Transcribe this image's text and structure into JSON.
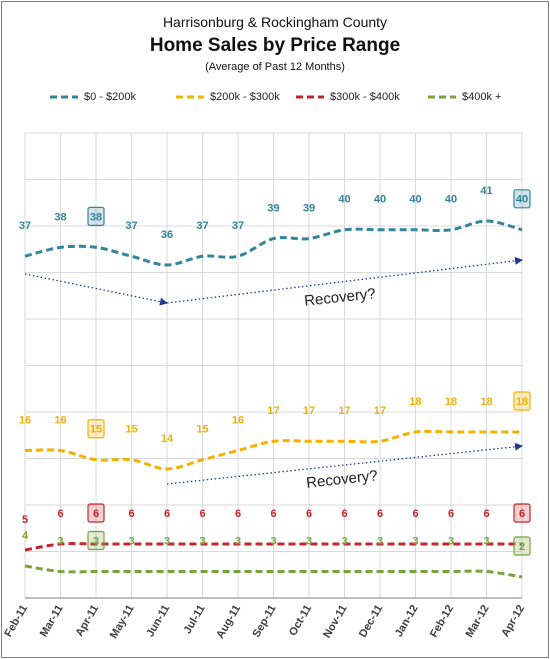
{
  "title_line1": "Harrisonburg & Rockingham County",
  "title": "Home Sales by Price Range",
  "subtitle": "(Average of Past 12 Months)",
  "chart_data": {
    "type": "line",
    "categories": [
      "Feb-11",
      "Mar-11",
      "Apr-11",
      "May-11",
      "Jun-11",
      "Jul-11",
      "Aug-11",
      "Sep-11",
      "Oct-11",
      "Nov-11",
      "Dec-11",
      "Jan-12",
      "Feb-12",
      "Mar-12",
      "Apr-12"
    ],
    "series": [
      {
        "name": "$0 - $200k",
        "color": "#31859c",
        "values": [
          37,
          38,
          38,
          37,
          36,
          37,
          37,
          39,
          39,
          40,
          40,
          40,
          40,
          41,
          40
        ],
        "highlight": [
          2,
          14
        ]
      },
      {
        "name": "$200k - $300k",
        "color": "#f5b000",
        "values": [
          16,
          16,
          15,
          15,
          14,
          15,
          16,
          17,
          17,
          17,
          17,
          18,
          18,
          18,
          18
        ],
        "highlight": [
          2,
          14
        ]
      },
      {
        "name": "$300k - $400k",
        "color": "#c0282d",
        "values": [
          5,
          6,
          6,
          6,
          6,
          6,
          6,
          6,
          6,
          6,
          6,
          6,
          6,
          6,
          6
        ],
        "highlight": [
          2,
          14
        ]
      },
      {
        "name": "$400k +",
        "color": "#77a33b",
        "values": [
          4,
          3,
          3,
          3,
          3,
          3,
          3,
          3,
          3,
          3,
          3,
          3,
          3,
          3,
          2
        ],
        "highlight": [
          2,
          14
        ]
      }
    ],
    "annotations": [
      {
        "text": "Recovery?",
        "series": "$0 - $200k"
      },
      {
        "text": "Recovery?",
        "series": "$200k - $300k"
      }
    ],
    "legend_position": "top",
    "grid": "vertical"
  }
}
